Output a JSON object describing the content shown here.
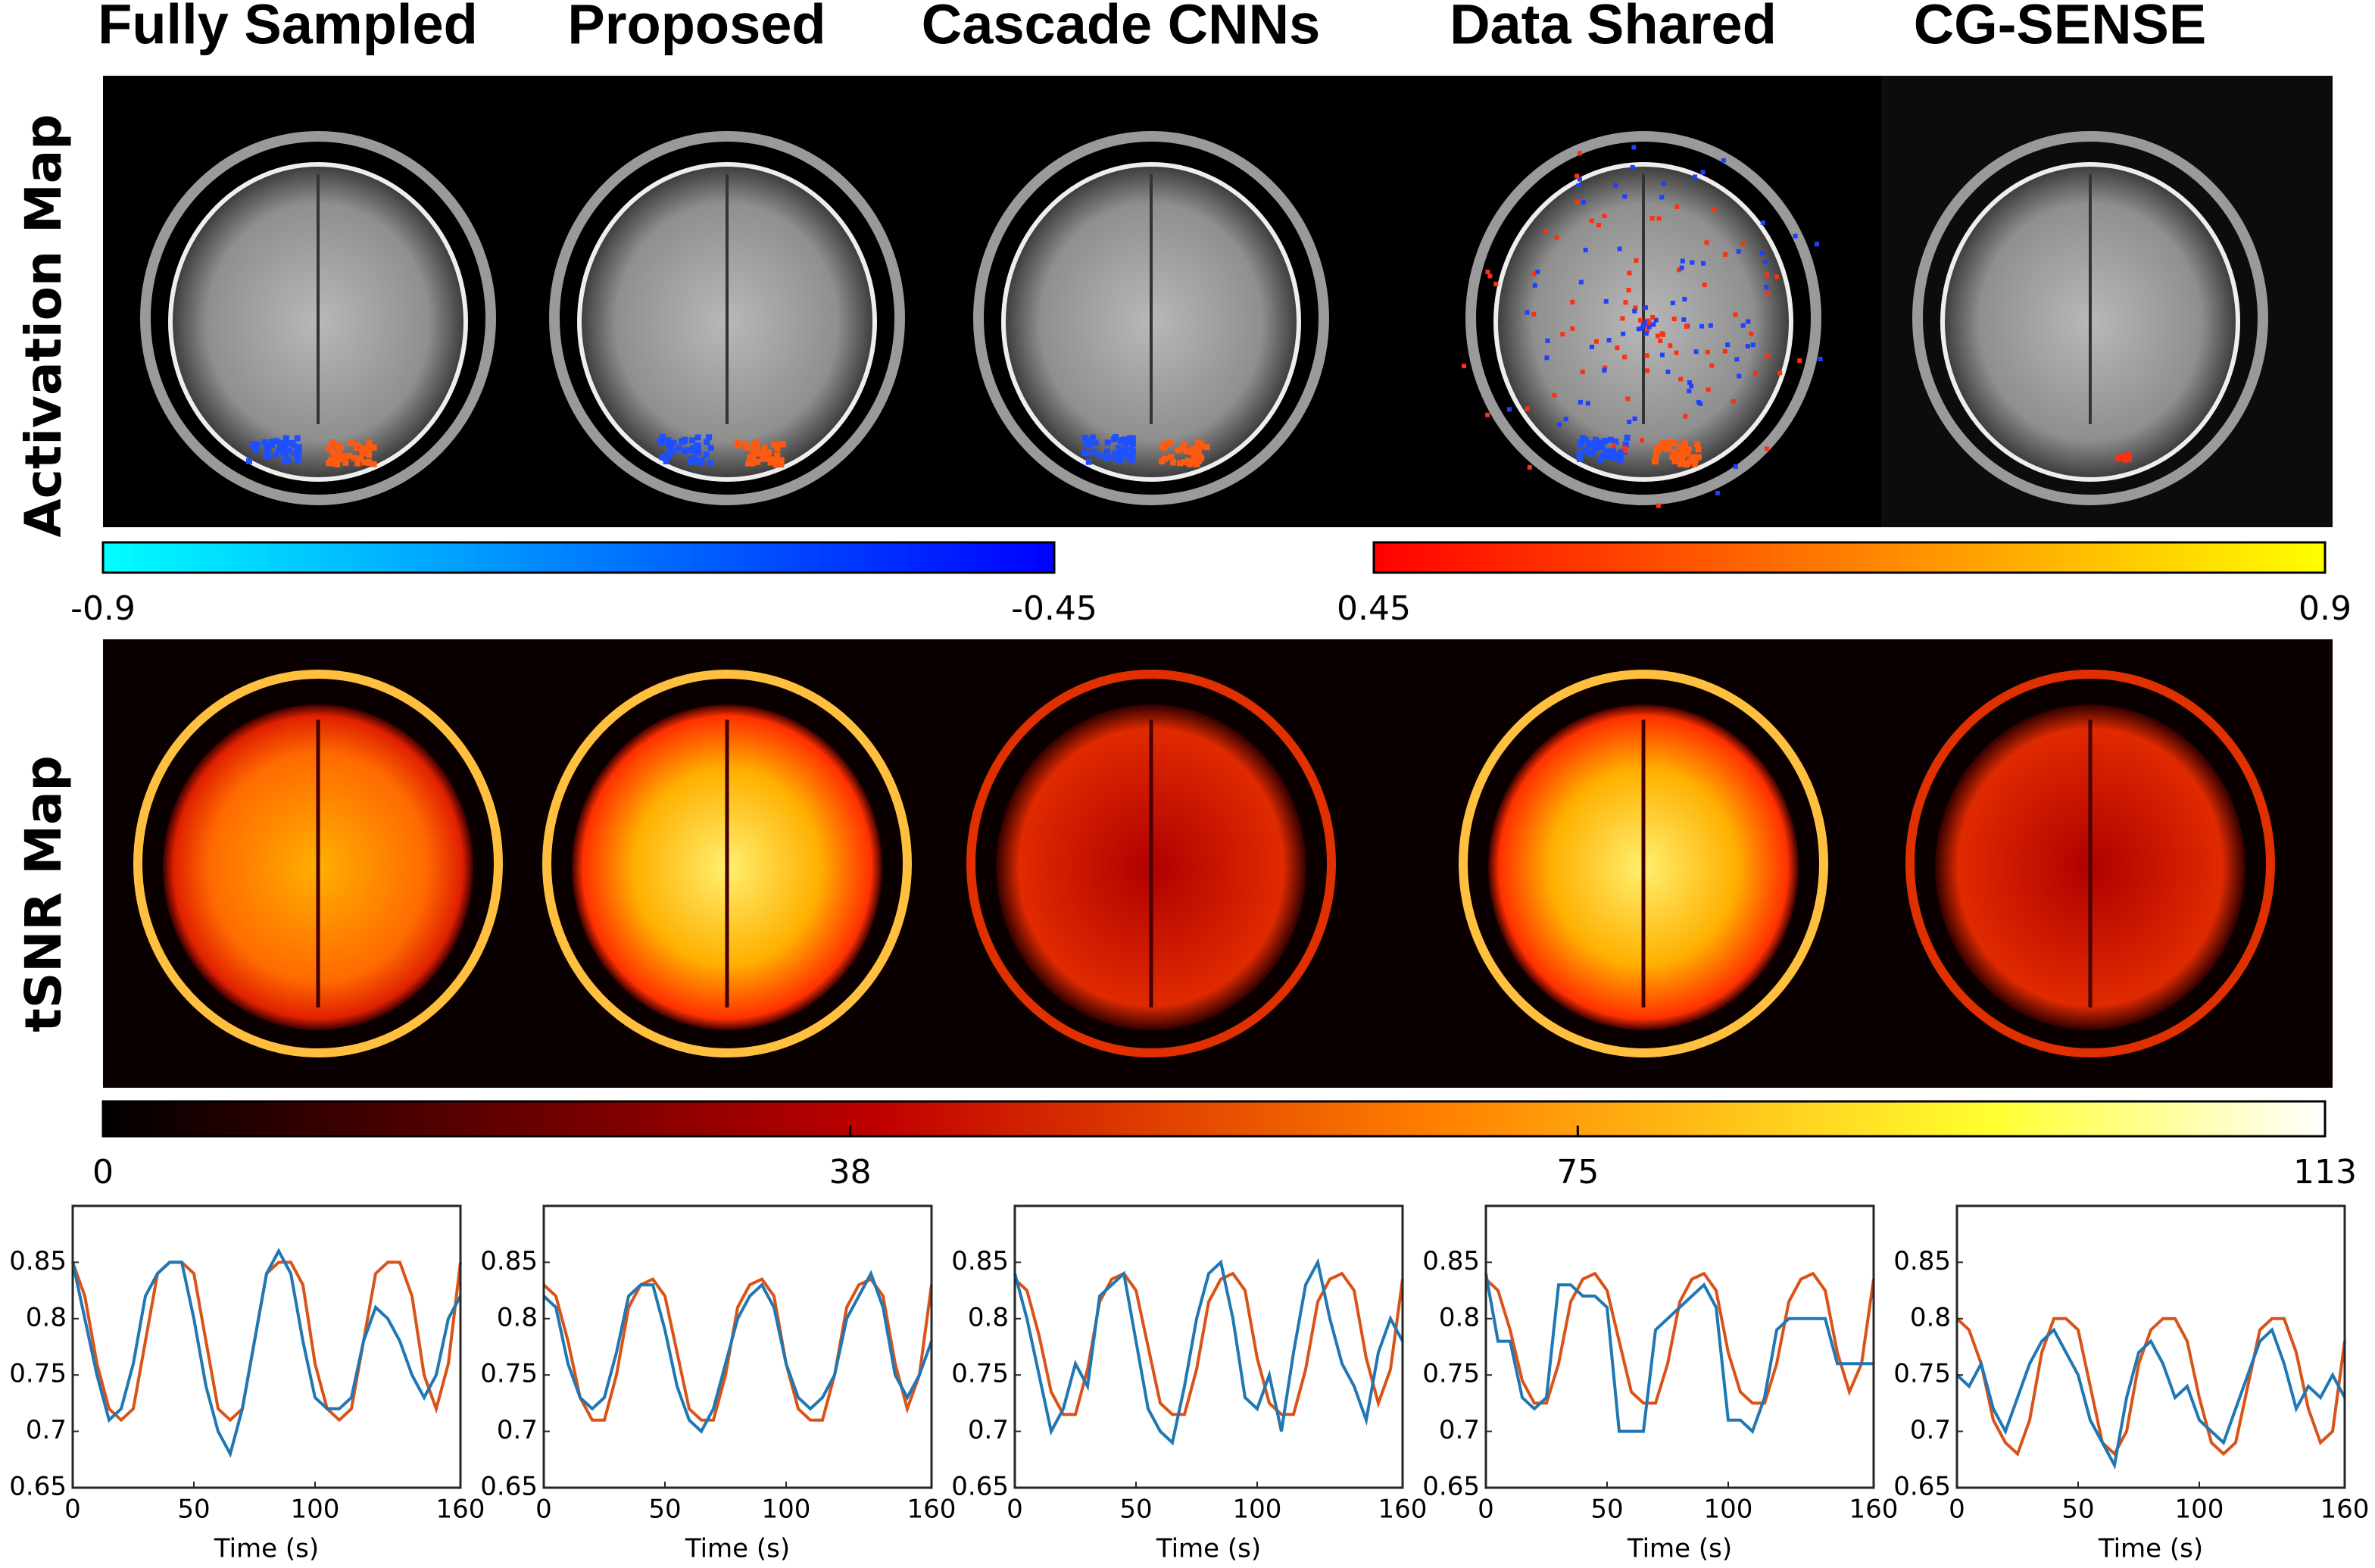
{
  "columns": [
    "Fully Sampled",
    "Proposed",
    "Cascade CNNs",
    "Data Shared",
    "CG-SENSE"
  ],
  "rows": [
    "Activation Map",
    "tSNR Map"
  ],
  "colorbars": [
    {
      "ticks": [
        -0.9,
        -0.45
      ]
    },
    {
      "ticks": [
        0.45,
        0.9
      ]
    },
    {
      "ticks": [
        0,
        38,
        75,
        113
      ]
    }
  ],
  "chart_data": [
    {
      "type": "line",
      "xlabel": "Time (s)",
      "xlim": [
        0,
        160
      ],
      "ylim": [
        0.65,
        0.9
      ],
      "xticks": [
        0,
        50,
        100,
        160
      ],
      "yticks": [
        0.65,
        0.7,
        0.75,
        0.8,
        0.85
      ],
      "x": [
        0,
        5,
        10,
        15,
        20,
        25,
        30,
        35,
        40,
        45,
        50,
        55,
        60,
        65,
        70,
        75,
        80,
        85,
        90,
        95,
        100,
        105,
        110,
        115,
        120,
        125,
        130,
        135,
        140,
        145,
        150,
        155,
        160
      ],
      "series": [
        {
          "color": "#d95319",
          "values": [
            0.85,
            0.82,
            0.76,
            0.72,
            0.71,
            0.72,
            0.78,
            0.84,
            0.85,
            0.85,
            0.84,
            0.78,
            0.72,
            0.71,
            0.72,
            0.78,
            0.84,
            0.85,
            0.85,
            0.83,
            0.76,
            0.72,
            0.71,
            0.72,
            0.78,
            0.84,
            0.85,
            0.85,
            0.82,
            0.75,
            0.72,
            0.76,
            0.85
          ]
        },
        {
          "color": "#1f77b4",
          "values": [
            0.85,
            0.8,
            0.75,
            0.71,
            0.72,
            0.76,
            0.82,
            0.84,
            0.85,
            0.85,
            0.8,
            0.74,
            0.7,
            0.68,
            0.72,
            0.78,
            0.84,
            0.86,
            0.84,
            0.78,
            0.73,
            0.72,
            0.72,
            0.73,
            0.78,
            0.81,
            0.8,
            0.78,
            0.75,
            0.73,
            0.75,
            0.8,
            0.82
          ]
        }
      ]
    },
    {
      "type": "line",
      "xlabel": "Time (s)",
      "xlim": [
        0,
        160
      ],
      "ylim": [
        0.65,
        0.9
      ],
      "xticks": [
        0,
        50,
        100,
        160
      ],
      "yticks": [
        0.65,
        0.7,
        0.75,
        0.8,
        0.85
      ],
      "x": [
        0,
        5,
        10,
        15,
        20,
        25,
        30,
        35,
        40,
        45,
        50,
        55,
        60,
        65,
        70,
        75,
        80,
        85,
        90,
        95,
        100,
        105,
        110,
        115,
        120,
        125,
        130,
        135,
        140,
        145,
        150,
        155,
        160
      ],
      "series": [
        {
          "color": "#d95319",
          "values": [
            0.83,
            0.82,
            0.78,
            0.73,
            0.71,
            0.71,
            0.75,
            0.81,
            0.83,
            0.835,
            0.82,
            0.77,
            0.72,
            0.71,
            0.71,
            0.75,
            0.81,
            0.83,
            0.835,
            0.82,
            0.76,
            0.72,
            0.71,
            0.71,
            0.75,
            0.81,
            0.83,
            0.835,
            0.82,
            0.76,
            0.72,
            0.75,
            0.83
          ]
        },
        {
          "color": "#1f77b4",
          "values": [
            0.82,
            0.81,
            0.76,
            0.73,
            0.72,
            0.73,
            0.77,
            0.82,
            0.83,
            0.83,
            0.79,
            0.74,
            0.71,
            0.7,
            0.72,
            0.76,
            0.8,
            0.82,
            0.83,
            0.81,
            0.76,
            0.73,
            0.72,
            0.73,
            0.75,
            0.8,
            0.82,
            0.84,
            0.81,
            0.75,
            0.73,
            0.75,
            0.78
          ]
        }
      ]
    },
    {
      "type": "line",
      "xlabel": "Time (s)",
      "xlim": [
        0,
        160
      ],
      "ylim": [
        0.65,
        0.9
      ],
      "xticks": [
        0,
        50,
        100,
        160
      ],
      "yticks": [
        0.65,
        0.7,
        0.75,
        0.8,
        0.85
      ],
      "x": [
        0,
        5,
        10,
        15,
        20,
        25,
        30,
        35,
        40,
        45,
        50,
        55,
        60,
        65,
        70,
        75,
        80,
        85,
        90,
        95,
        100,
        105,
        110,
        115,
        120,
        125,
        130,
        135,
        140,
        145,
        150,
        155,
        160
      ],
      "series": [
        {
          "color": "#d95319",
          "values": [
            0.835,
            0.825,
            0.785,
            0.735,
            0.715,
            0.715,
            0.755,
            0.815,
            0.835,
            0.84,
            0.825,
            0.775,
            0.725,
            0.715,
            0.715,
            0.755,
            0.815,
            0.835,
            0.84,
            0.825,
            0.765,
            0.725,
            0.715,
            0.715,
            0.755,
            0.815,
            0.835,
            0.84,
            0.825,
            0.765,
            0.725,
            0.755,
            0.835
          ]
        },
        {
          "color": "#1f77b4",
          "values": [
            0.84,
            0.8,
            0.75,
            0.7,
            0.72,
            0.76,
            0.74,
            0.82,
            0.83,
            0.84,
            0.78,
            0.72,
            0.7,
            0.69,
            0.74,
            0.8,
            0.84,
            0.85,
            0.8,
            0.73,
            0.72,
            0.75,
            0.7,
            0.77,
            0.83,
            0.85,
            0.8,
            0.76,
            0.74,
            0.71,
            0.77,
            0.8,
            0.78
          ]
        }
      ]
    },
    {
      "type": "line",
      "xlabel": "Time (s)",
      "xlim": [
        0,
        160
      ],
      "ylim": [
        0.65,
        0.9
      ],
      "xticks": [
        0,
        50,
        100,
        160
      ],
      "yticks": [
        0.65,
        0.7,
        0.75,
        0.8,
        0.85
      ],
      "x": [
        0,
        5,
        10,
        15,
        20,
        25,
        30,
        35,
        40,
        45,
        50,
        55,
        60,
        65,
        70,
        75,
        80,
        85,
        90,
        95,
        100,
        105,
        110,
        115,
        120,
        125,
        130,
        135,
        140,
        145,
        150,
        155,
        160
      ],
      "series": [
        {
          "color": "#d95319",
          "values": [
            0.835,
            0.825,
            0.79,
            0.745,
            0.725,
            0.725,
            0.76,
            0.815,
            0.835,
            0.84,
            0.825,
            0.78,
            0.735,
            0.725,
            0.725,
            0.76,
            0.815,
            0.835,
            0.84,
            0.825,
            0.77,
            0.735,
            0.725,
            0.725,
            0.76,
            0.815,
            0.835,
            0.84,
            0.825,
            0.77,
            0.735,
            0.76,
            0.835
          ]
        },
        {
          "color": "#1f77b4",
          "values": [
            0.84,
            0.78,
            0.78,
            0.73,
            0.72,
            0.73,
            0.83,
            0.83,
            0.82,
            0.82,
            0.81,
            0.7,
            0.7,
            0.7,
            0.79,
            0.8,
            0.81,
            0.82,
            0.83,
            0.81,
            0.71,
            0.71,
            0.7,
            0.73,
            0.79,
            0.8,
            0.8,
            0.8,
            0.8,
            0.76,
            0.76,
            0.76,
            0.76
          ]
        }
      ]
    },
    {
      "type": "line",
      "xlabel": "Time (s)",
      "xlim": [
        0,
        160
      ],
      "ylim": [
        0.65,
        0.9
      ],
      "xticks": [
        0,
        50,
        100,
        160
      ],
      "yticks": [
        0.65,
        0.7,
        0.75,
        0.8,
        0.85
      ],
      "x": [
        0,
        5,
        10,
        15,
        20,
        25,
        30,
        35,
        40,
        45,
        50,
        55,
        60,
        65,
        70,
        75,
        80,
        85,
        90,
        95,
        100,
        105,
        110,
        115,
        120,
        125,
        130,
        135,
        140,
        145,
        150,
        155,
        160
      ],
      "series": [
        {
          "color": "#d95319",
          "values": [
            0.8,
            0.79,
            0.76,
            0.71,
            0.69,
            0.68,
            0.71,
            0.77,
            0.8,
            0.8,
            0.79,
            0.74,
            0.69,
            0.68,
            0.7,
            0.76,
            0.79,
            0.8,
            0.8,
            0.78,
            0.73,
            0.69,
            0.68,
            0.69,
            0.74,
            0.79,
            0.8,
            0.8,
            0.77,
            0.72,
            0.69,
            0.7,
            0.78
          ]
        },
        {
          "color": "#1f77b4",
          "values": [
            0.75,
            0.74,
            0.76,
            0.72,
            0.7,
            0.73,
            0.76,
            0.78,
            0.79,
            0.77,
            0.75,
            0.71,
            0.69,
            0.67,
            0.73,
            0.77,
            0.78,
            0.76,
            0.73,
            0.74,
            0.71,
            0.7,
            0.69,
            0.72,
            0.75,
            0.78,
            0.79,
            0.76,
            0.72,
            0.74,
            0.73,
            0.75,
            0.73
          ]
        }
      ]
    }
  ]
}
